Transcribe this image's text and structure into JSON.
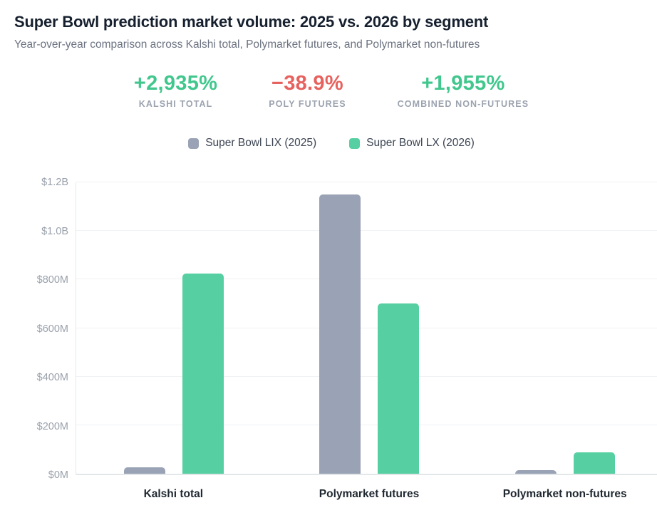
{
  "header": {
    "title": "Super Bowl prediction market volume: 2025 vs. 2026 by segment",
    "subtitle": "Year-over-year comparison across Kalshi total, Polymarket futures, and Polymarket non-futures"
  },
  "stats": {
    "items": [
      {
        "value": "+2,935%",
        "label": "KALSHI TOTAL",
        "color": "#41c78d"
      },
      {
        "value": "−38.9%",
        "label": "POLY FUTURES",
        "color": "#e7625e"
      },
      {
        "value": "+1,955%",
        "label": "COMBINED NON-FUTURES",
        "color": "#41c78d"
      }
    ]
  },
  "legend": {
    "items": [
      {
        "label": "Super Bowl LIX (2025)",
        "color": "#99a3b5"
      },
      {
        "label": "Super Bowl LX (2026)",
        "color": "#56d0a2"
      }
    ]
  },
  "chart_data": {
    "type": "bar",
    "title": "Super Bowl prediction market volume: 2025 vs. 2026 by segment",
    "categories": [
      "Kalshi total",
      "Polymarket futures",
      "Polymarket non-futures"
    ],
    "series": [
      {
        "name": "Super Bowl LIX (2025)",
        "color": "#99a3b5",
        "values": [
          27,
          1150,
          15
        ]
      },
      {
        "name": "Super Bowl LX (2026)",
        "color": "#56d0a2",
        "values": [
          825,
          700,
          88
        ]
      }
    ],
    "unit": "USD millions",
    "xlabel": "",
    "ylabel": "",
    "ylim": [
      0,
      1200
    ],
    "yticks": [
      {
        "label": "$0M",
        "value": 0
      },
      {
        "label": "$200M",
        "value": 200
      },
      {
        "label": "$400M",
        "value": 400
      },
      {
        "label": "$600M",
        "value": 600
      },
      {
        "label": "$800M",
        "value": 800
      },
      {
        "label": "$1.0B",
        "value": 1000
      },
      {
        "label": "$1.2B",
        "value": 1200
      }
    ],
    "grid": true,
    "legend_position": "top"
  }
}
